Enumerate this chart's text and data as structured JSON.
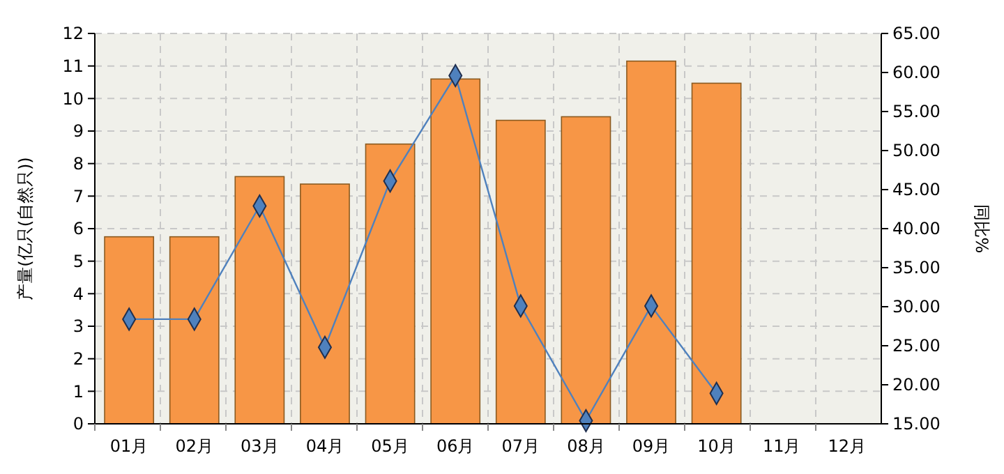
{
  "chart_data": {
    "type": "bar",
    "ylabel": "产量(亿只(自然只))",
    "y2label": "同比%",
    "categories": [
      "01月",
      "02月",
      "03月",
      "04月",
      "05月",
      "06月",
      "07月",
      "08月",
      "09月",
      "10月",
      "11月",
      "12月"
    ],
    "series": [
      {
        "color": "#f79646",
        "values": [
          5.75,
          5.75,
          7.6,
          7.37,
          8.6,
          10.6,
          9.33,
          9.44,
          11.15,
          10.47,
          null,
          null
        ]
      },
      {
        "type": "line",
        "axis": "y2",
        "color": "#4f81bd",
        "marker": "diamond",
        "values": [
          28.4,
          28.4,
          42.9,
          24.8,
          46.1,
          59.6,
          30.1,
          15.4,
          30.1,
          18.9,
          null,
          null
        ]
      }
    ],
    "ylim": [
      0,
      12
    ],
    "yticks": [
      0,
      1,
      2,
      3,
      4,
      5,
      6,
      7,
      8,
      9,
      10,
      11,
      12
    ],
    "y2lim": [
      15,
      65
    ],
    "y2ticks": [
      {
        "value": 15,
        "label": "15.00"
      },
      {
        "value": 20,
        "label": "20.00"
      },
      {
        "value": 25,
        "label": "25.00"
      },
      {
        "value": 30,
        "label": "30.00"
      },
      {
        "value": 35,
        "label": "35.00"
      },
      {
        "value": 40,
        "label": "40.00"
      },
      {
        "value": 45,
        "label": "45.00"
      },
      {
        "value": 50,
        "label": "50.00"
      },
      {
        "value": 55,
        "label": "55.00"
      },
      {
        "value": 60,
        "label": "60.00"
      },
      {
        "value": 65,
        "label": "65.00"
      }
    ],
    "grid": true
  }
}
